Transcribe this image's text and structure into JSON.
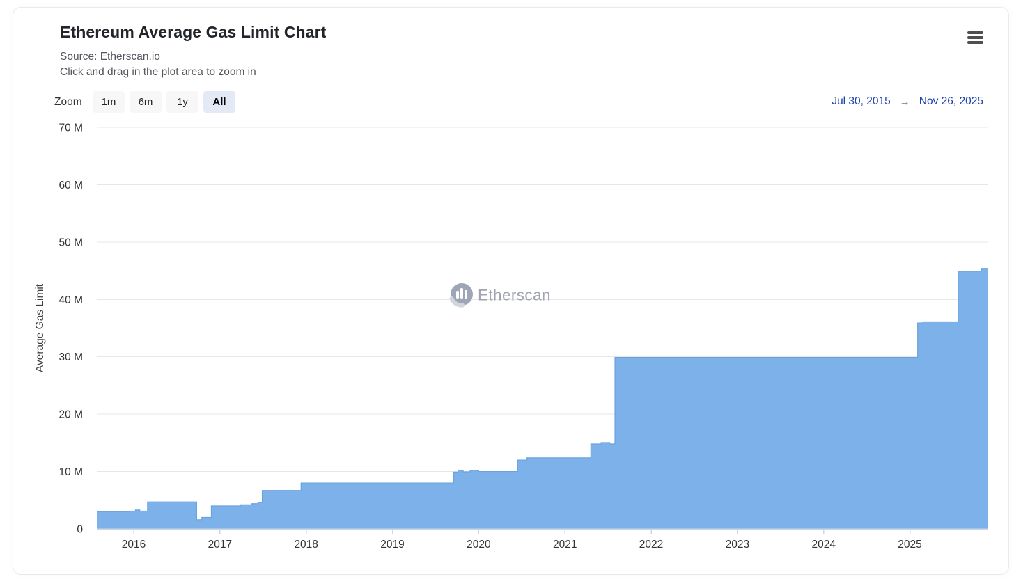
{
  "card": {
    "title": "Ethereum Average Gas Limit Chart",
    "subtitle_source": "Source: Etherscan.io",
    "subtitle_hint": "Click and drag in the plot area to zoom in"
  },
  "toolbar": {
    "zoom_label": "Zoom",
    "zoom_buttons": [
      {
        "label": "1m",
        "selected": false
      },
      {
        "label": "6m",
        "selected": false
      },
      {
        "label": "1y",
        "selected": false
      },
      {
        "label": "All",
        "selected": true
      }
    ],
    "range_from": "Jul 30, 2015",
    "range_arrow": "→",
    "range_to": "Nov 26, 2025"
  },
  "watermark": {
    "text": "Etherscan",
    "icon": "etherscan-logo-icon"
  },
  "colors": {
    "area_fill": "#7cb2e9",
    "area_line": "#69a2de",
    "grid_line": "#e7e7e7",
    "axis_line": "#ccd6eb",
    "axis_label": "#333333",
    "range_date_blue": "#1b41ad",
    "button_bg": "#f7f7f7",
    "button_selected_bg": "#e4eaf5",
    "watermark_gray": "#9aa0ac"
  },
  "chart_data": {
    "type": "area",
    "title": "Ethereum Average Gas Limit Chart",
    "xlabel": "",
    "ylabel": "Average Gas Limit",
    "legend": "none",
    "grid": "horizontal-only",
    "x_range_decimal_years": [
      2015.58,
      2025.9
    ],
    "x_start_date": "Jul 30, 2015",
    "x_end_date": "Nov 26, 2025",
    "y_range_millions": [
      0,
      70
    ],
    "y_tick_step_millions": 10,
    "y_tick_labels": [
      "0",
      "10 M",
      "20 M",
      "30 M",
      "40 M",
      "50 M",
      "60 M",
      "70 M"
    ],
    "x_tick_years": [
      2016,
      2017,
      2018,
      2019,
      2020,
      2021,
      2022,
      2023,
      2024,
      2025
    ],
    "x_tick_labels": [
      "2016",
      "2017",
      "2018",
      "2019",
      "2020",
      "2021",
      "2022",
      "2023",
      "2024",
      "2025"
    ],
    "series": [
      {
        "name": "Average Gas Limit",
        "step": true,
        "units": "millions of gas",
        "points_millions": [
          [
            2015.58,
            3.0
          ],
          [
            2015.95,
            3.1
          ],
          [
            2016.02,
            3.3
          ],
          [
            2016.07,
            3.1
          ],
          [
            2016.16,
            4.7
          ],
          [
            2016.73,
            1.6
          ],
          [
            2016.79,
            2.0
          ],
          [
            2016.9,
            4.0
          ],
          [
            2017.24,
            4.2
          ],
          [
            2017.37,
            4.4
          ],
          [
            2017.44,
            4.6
          ],
          [
            2017.49,
            6.7
          ],
          [
            2017.94,
            8.0
          ],
          [
            2019.71,
            9.9
          ],
          [
            2019.76,
            10.2
          ],
          [
            2019.82,
            9.95
          ],
          [
            2019.9,
            10.2
          ],
          [
            2020.0,
            10.0
          ],
          [
            2020.45,
            12.0
          ],
          [
            2020.56,
            12.4
          ],
          [
            2021.3,
            14.8
          ],
          [
            2021.42,
            15.05
          ],
          [
            2021.52,
            14.8
          ],
          [
            2021.58,
            29.9
          ],
          [
            2025.09,
            35.9
          ],
          [
            2025.15,
            36.1
          ],
          [
            2025.56,
            44.9
          ],
          [
            2025.83,
            45.4
          ]
        ]
      }
    ]
  }
}
